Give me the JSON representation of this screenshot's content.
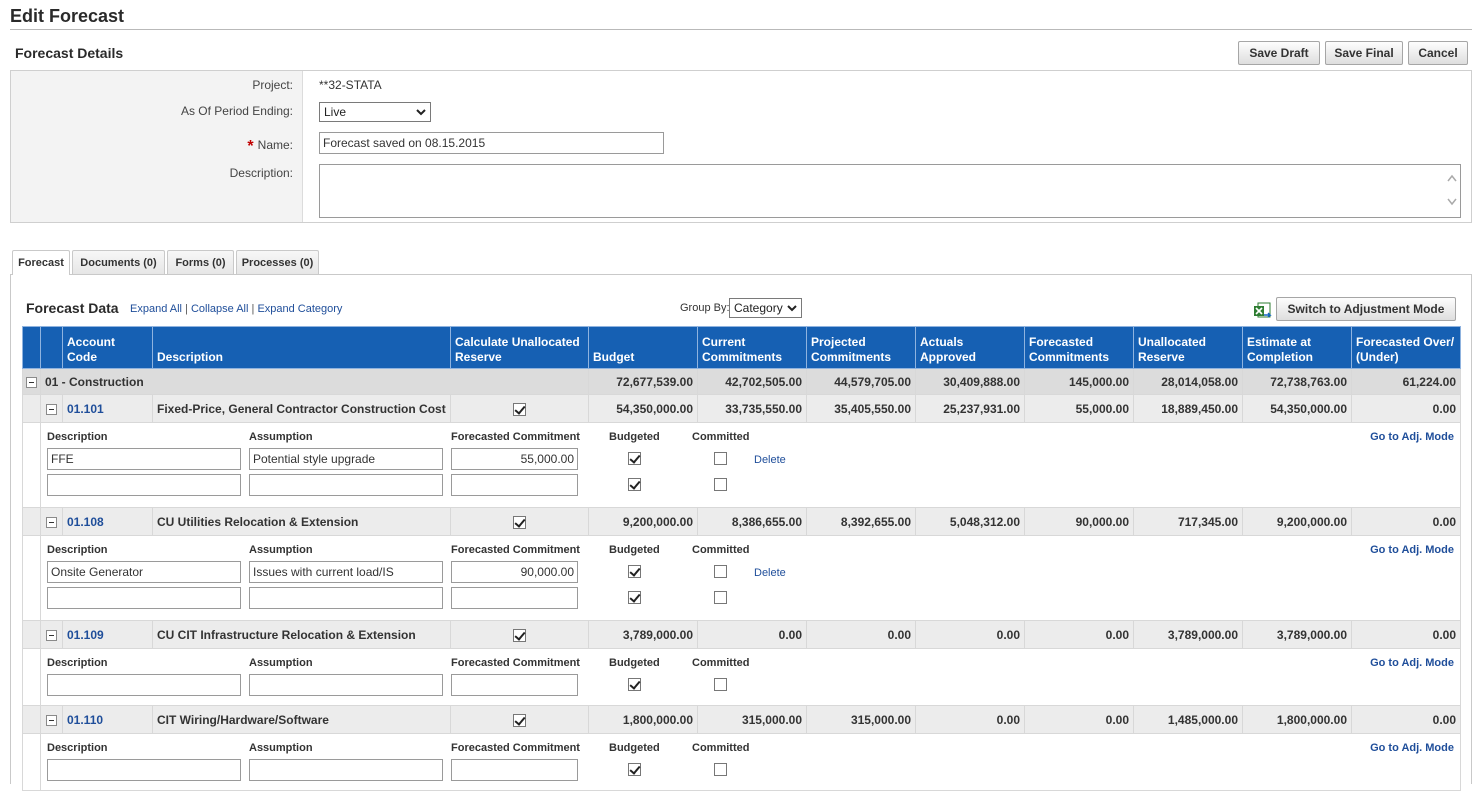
{
  "page": {
    "title": "Edit Forecast",
    "section_title": "Forecast Details",
    "buttons": {
      "save_draft": "Save Draft",
      "save_final": "Save Final",
      "cancel": "Cancel"
    }
  },
  "details": {
    "project_label": "Project:",
    "project_value": "**32-STATA",
    "period_label": "As Of Period Ending:",
    "period_value": "Live",
    "name_required_marker": "*",
    "name_label": "Name:",
    "name_value": "Forecast saved on 08.15.2015",
    "description_label": "Description:",
    "description_value": ""
  },
  "tabs": [
    {
      "label": "Forecast",
      "active": true
    },
    {
      "label": "Documents (0)",
      "active": false
    },
    {
      "label": "Forms (0)",
      "active": false
    },
    {
      "label": "Processes (0)",
      "active": false
    }
  ],
  "forecast_data": {
    "title": "Forecast Data",
    "links": {
      "expand_all": "Expand All",
      "collapse_all": "Collapse All",
      "expand_category": "Expand Category",
      "separator": "|"
    },
    "group_by_label": "Group By:",
    "group_by_value": "Category",
    "switch_button": "Switch to Adjustment Mode",
    "icons": {
      "export": "excel-export-icon"
    }
  },
  "grid": {
    "columns": [
      "Account Code",
      "Description",
      "Calculate Unallocated Reserve",
      "Budget",
      "Current Commitments",
      "Projected Commitments",
      "Actuals Approved",
      "Forecasted Commitments",
      "Unallocated Reserve",
      "Estimate at Completion",
      "Forecasted Over/ (Under)"
    ],
    "category": {
      "label": "01 - Construction",
      "values": [
        "72,677,539.00",
        "42,702,505.00",
        "44,579,705.00",
        "30,409,888.00",
        "145,000.00",
        "28,014,058.00",
        "72,738,763.00",
        "61,224.00"
      ]
    },
    "sub_headers": {
      "description": "Description",
      "assumption": "Assumption",
      "forecasted_commitment": "Forecasted Commitment",
      "budgeted": "Budgeted",
      "committed": "Committed",
      "delete": "Delete",
      "go_adj": "Go to Adj. Mode"
    },
    "accounts": [
      {
        "code": "01.101",
        "description": "Fixed-Price, General Contractor Construction Cost",
        "calc_reserve": true,
        "values": [
          "54,350,000.00",
          "33,735,550.00",
          "35,405,550.00",
          "25,237,931.00",
          "55,000.00",
          "18,889,450.00",
          "54,350,000.00",
          "0.00"
        ],
        "lines": [
          {
            "description": "FFE",
            "assumption": "Potential style upgrade",
            "forecasted": "55,000.00",
            "budgeted": true,
            "committed": false,
            "deletable": true
          },
          {
            "description": "",
            "assumption": "",
            "forecasted": "",
            "budgeted": true,
            "committed": false,
            "deletable": false
          }
        ]
      },
      {
        "code": "01.108",
        "description": "CU Utilities Relocation & Extension",
        "calc_reserve": true,
        "values": [
          "9,200,000.00",
          "8,386,655.00",
          "8,392,655.00",
          "5,048,312.00",
          "90,000.00",
          "717,345.00",
          "9,200,000.00",
          "0.00"
        ],
        "lines": [
          {
            "description": "Onsite Generator",
            "assumption": "Issues with current load/IS",
            "forecasted": "90,000.00",
            "budgeted": true,
            "committed": false,
            "deletable": true
          },
          {
            "description": "",
            "assumption": "",
            "forecasted": "",
            "budgeted": true,
            "committed": false,
            "deletable": false
          }
        ]
      },
      {
        "code": "01.109",
        "description": "CU CIT Infrastructure Relocation & Extension",
        "calc_reserve": true,
        "values": [
          "3,789,000.00",
          "0.00",
          "0.00",
          "0.00",
          "0.00",
          "3,789,000.00",
          "3,789,000.00",
          "0.00"
        ],
        "lines": [
          {
            "description": "",
            "assumption": "",
            "forecasted": "",
            "budgeted": true,
            "committed": false,
            "deletable": false
          }
        ]
      },
      {
        "code": "01.110",
        "description": "CIT Wiring/Hardware/Software",
        "calc_reserve": true,
        "values": [
          "1,800,000.00",
          "315,000.00",
          "315,000.00",
          "0.00",
          "0.00",
          "1,485,000.00",
          "1,800,000.00",
          "0.00"
        ],
        "lines": [
          {
            "description": "",
            "assumption": "",
            "forecasted": "",
            "budgeted": true,
            "committed": false,
            "deletable": false
          }
        ]
      }
    ]
  }
}
